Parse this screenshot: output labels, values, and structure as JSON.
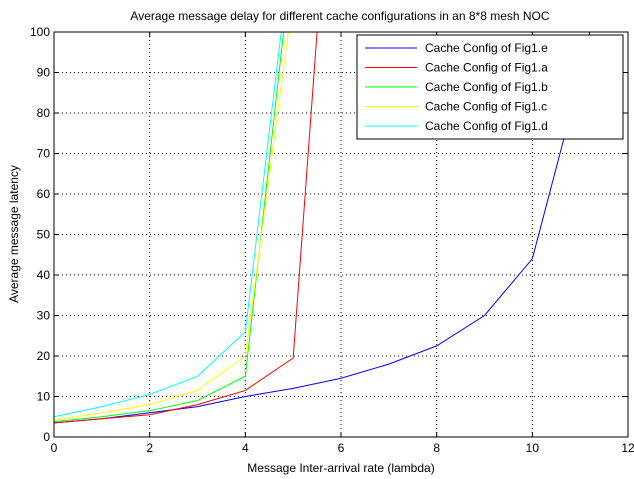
{
  "chart_data": {
    "type": "line",
    "title": "Average message delay for different cache configurations in an 8*8 mesh NOC",
    "xlabel": "Message Inter-arrival rate (lambda)",
    "ylabel": "Average message latency",
    "xlim": [
      0,
      12
    ],
    "ylim": [
      0,
      100
    ],
    "xticks": [
      0,
      2,
      4,
      6,
      8,
      10,
      12
    ],
    "yticks": [
      0,
      10,
      20,
      30,
      40,
      50,
      60,
      70,
      80,
      90,
      100
    ],
    "grid": true,
    "legend_position": "top-right",
    "series": [
      {
        "name": "Cache Config of Fig1.e",
        "color": "#0000ff",
        "x": [
          0,
          1,
          2,
          3,
          4,
          5,
          6,
          7,
          8,
          9,
          10,
          11,
          11.2
        ],
        "y": [
          3.5,
          4.5,
          6,
          7.5,
          10,
          12,
          14.5,
          18,
          22.5,
          30,
          44,
          89,
          100
        ]
      },
      {
        "name": "Cache Config of Fig1.a",
        "color": "#ff0000",
        "x": [
          0,
          1,
          2,
          3,
          4,
          5,
          5.5
        ],
        "y": [
          3.5,
          4.5,
          5.5,
          8,
          11.5,
          19.5,
          100
        ]
      },
      {
        "name": "Cache Config of Fig1.b",
        "color": "#00ff00",
        "x": [
          0,
          1,
          2,
          3,
          4,
          4.8
        ],
        "y": [
          3.8,
          5,
          6.5,
          9,
          15,
          100
        ]
      },
      {
        "name": "Cache Config of Fig1.c",
        "color": "#ffff00",
        "x": [
          0,
          1,
          2,
          3,
          4,
          4.9
        ],
        "y": [
          4.2,
          6,
          8,
          11.5,
          20,
          100
        ]
      },
      {
        "name": "Cache Config of Fig1.d",
        "color": "#00ffff",
        "x": [
          0,
          1,
          2,
          3,
          4,
          4.75
        ],
        "y": [
          5,
          7.5,
          10.5,
          15,
          26,
          100
        ]
      }
    ]
  }
}
